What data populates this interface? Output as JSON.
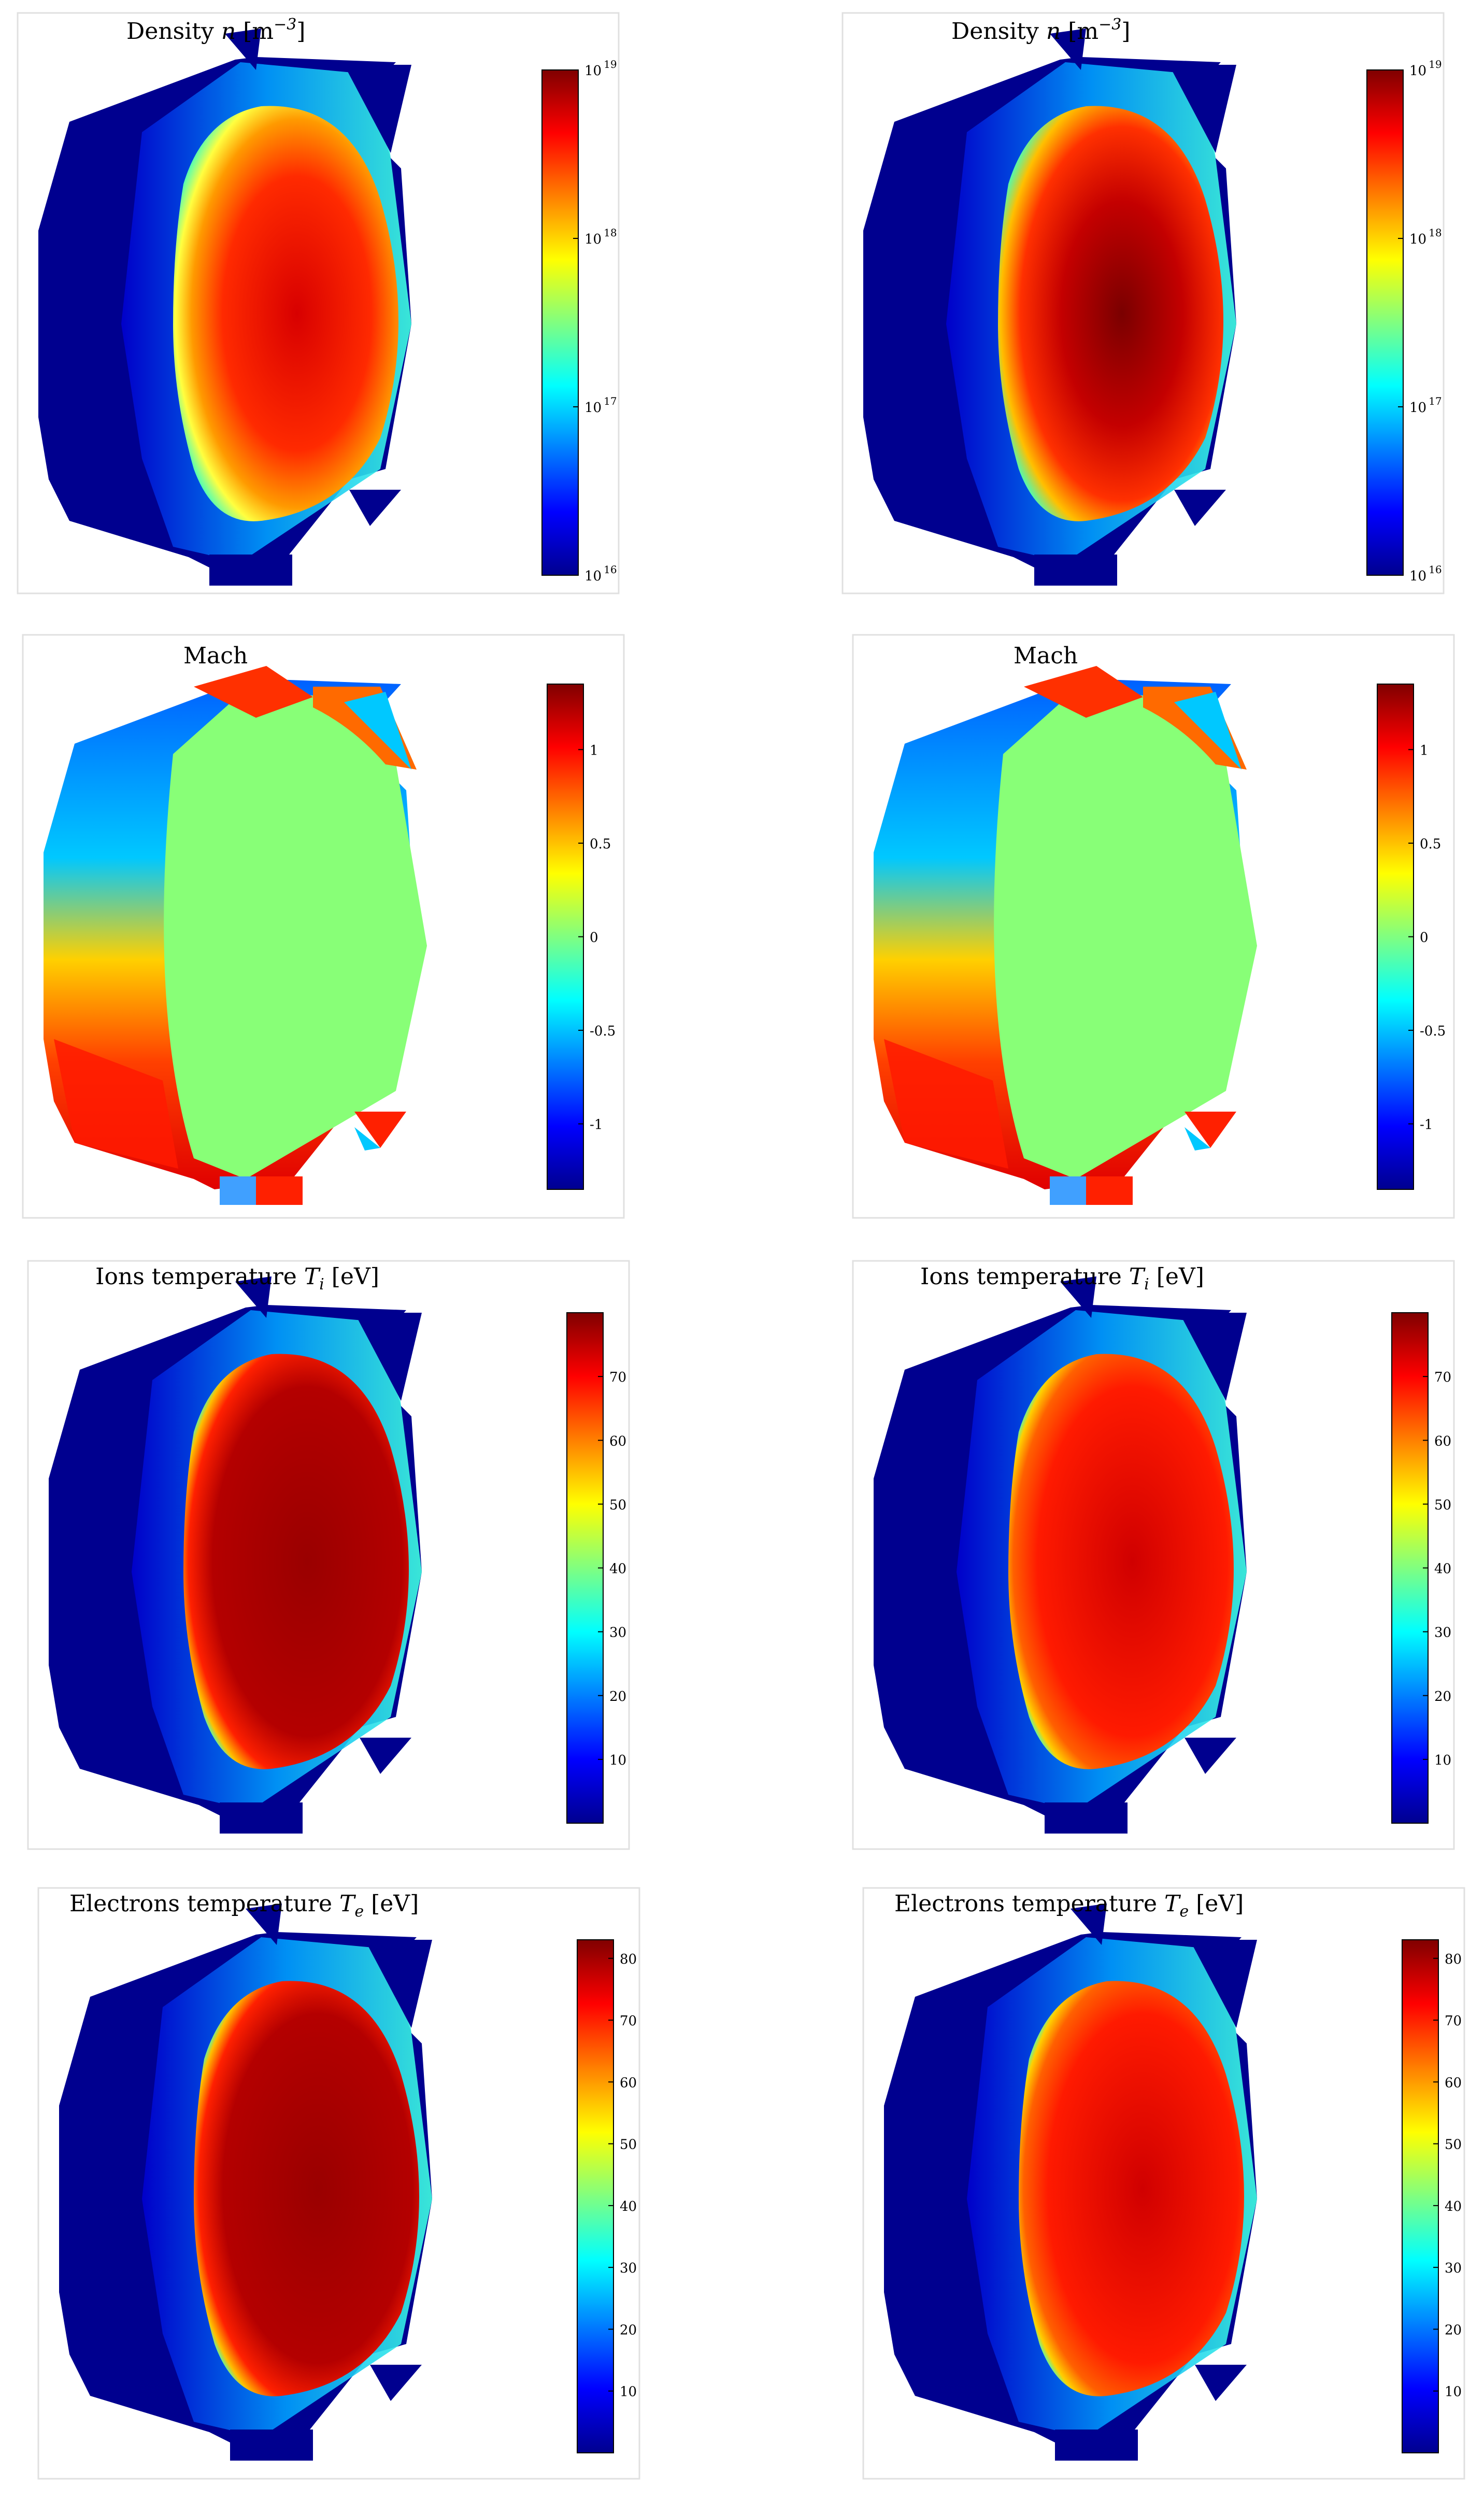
{
  "panels": [
    {
      "id": "density-left",
      "title": {
        "pre": "Density ",
        "var": "n",
        "post": " [m",
        "sup": "−3",
        "end": "]"
      },
      "colorbar": {
        "scale": "log",
        "ticks": [
          {
            "base": "10",
            "exp": "16"
          },
          {
            "base": "10",
            "exp": "17"
          },
          {
            "base": "10",
            "exp": "18"
          },
          {
            "base": "10",
            "exp": "19"
          }
        ]
      }
    },
    {
      "id": "density-right",
      "title": {
        "pre": "Density ",
        "var": "n",
        "post": " [m",
        "sup": "−3",
        "end": "]"
      },
      "colorbar": {
        "scale": "log",
        "ticks": [
          {
            "base": "10",
            "exp": "16"
          },
          {
            "base": "10",
            "exp": "17"
          },
          {
            "base": "10",
            "exp": "18"
          },
          {
            "base": "10",
            "exp": "19"
          }
        ]
      }
    },
    {
      "id": "mach-left",
      "title": {
        "pre": "Mach"
      },
      "colorbar": {
        "scale": "linear",
        "range": [
          -1.35,
          1.35
        ],
        "ticks": [
          "1",
          "0.5",
          "0",
          "-0.5",
          "-1"
        ]
      }
    },
    {
      "id": "mach-right",
      "title": {
        "pre": "Mach"
      },
      "colorbar": {
        "scale": "linear",
        "range": [
          -1.35,
          1.35
        ],
        "ticks": [
          "1",
          "0.5",
          "0",
          "-0.5",
          "-1"
        ]
      }
    },
    {
      "id": "ions-left",
      "title": {
        "pre": "Ions temperature ",
        "var": "T",
        "sub": "i",
        "post": " [eV]"
      },
      "colorbar": {
        "scale": "linear",
        "range": [
          0,
          80
        ],
        "ticks": [
          "70",
          "60",
          "50",
          "40",
          "30",
          "20",
          "10"
        ]
      }
    },
    {
      "id": "ions-right",
      "title": {
        "pre": "Ions temperature ",
        "var": "T",
        "sub": "i",
        "post": " [eV]"
      },
      "colorbar": {
        "scale": "linear",
        "range": [
          0,
          80
        ],
        "ticks": [
          "70",
          "60",
          "50",
          "40",
          "30",
          "20",
          "10"
        ]
      }
    },
    {
      "id": "electrons-left",
      "title": {
        "pre": "Electrons temperature ",
        "var": "T",
        "sub": "e",
        "post": " [eV]"
      },
      "colorbar": {
        "scale": "linear",
        "range": [
          0,
          83
        ],
        "ticks": [
          "80",
          "70",
          "60",
          "50",
          "40",
          "30",
          "20",
          "10"
        ]
      }
    },
    {
      "id": "electrons-right",
      "title": {
        "pre": "Electrons temperature ",
        "var": "T",
        "sub": "e",
        "post": " [eV]"
      },
      "colorbar": {
        "scale": "linear",
        "range": [
          0,
          83
        ],
        "ticks": [
          "80",
          "70",
          "60",
          "50",
          "40",
          "30",
          "20",
          "10"
        ]
      }
    }
  ]
}
